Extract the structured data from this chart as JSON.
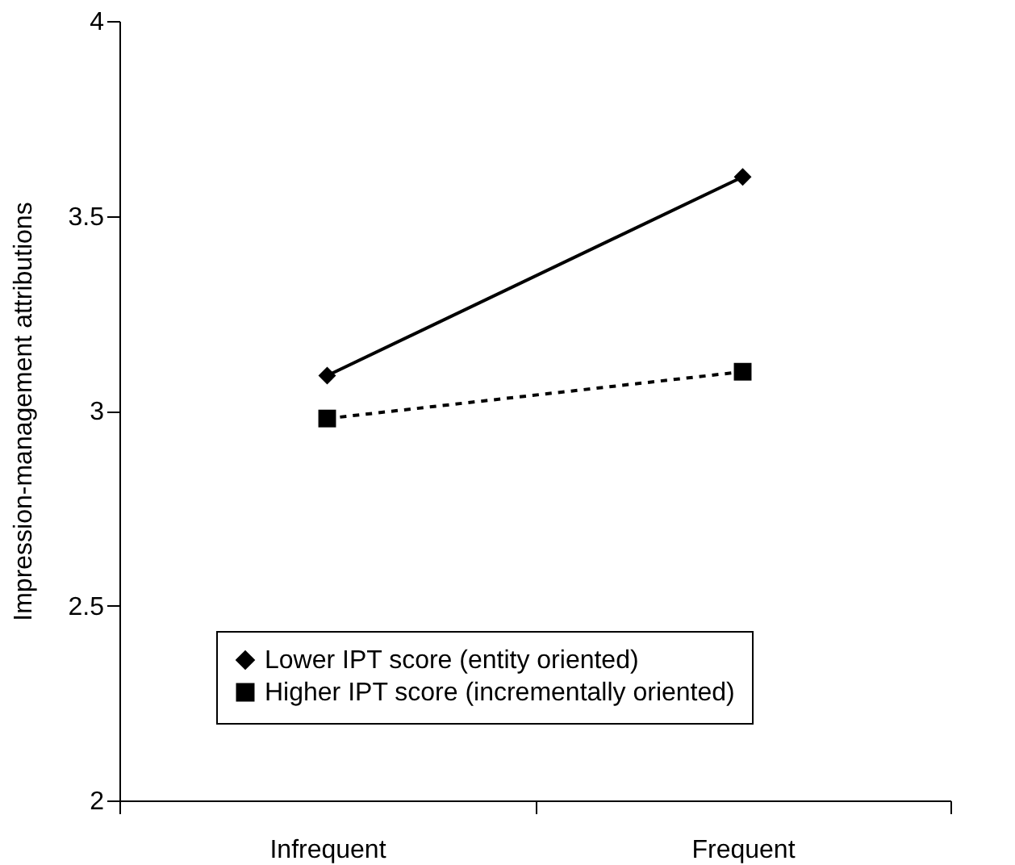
{
  "chart_data": {
    "type": "line",
    "ylabel": "Impression-management attributions",
    "categories": [
      "Infrequent",
      "Frequent"
    ],
    "series": [
      {
        "name": "Lower IPT score (entity oriented)",
        "color": "#000000",
        "values": [
          3.09,
          3.6
        ],
        "marker": "diamond",
        "line_style": "solid"
      },
      {
        "name": "Higher IPT score (incrementally oriented)",
        "color": "#000000",
        "values": [
          2.98,
          3.1
        ],
        "marker": "square",
        "line_style": "dashed"
      }
    ],
    "ylim": [
      2,
      4
    ],
    "yticks": [
      2,
      2.5,
      3,
      3.5,
      4
    ],
    "grid": false,
    "legend": "bottom"
  }
}
